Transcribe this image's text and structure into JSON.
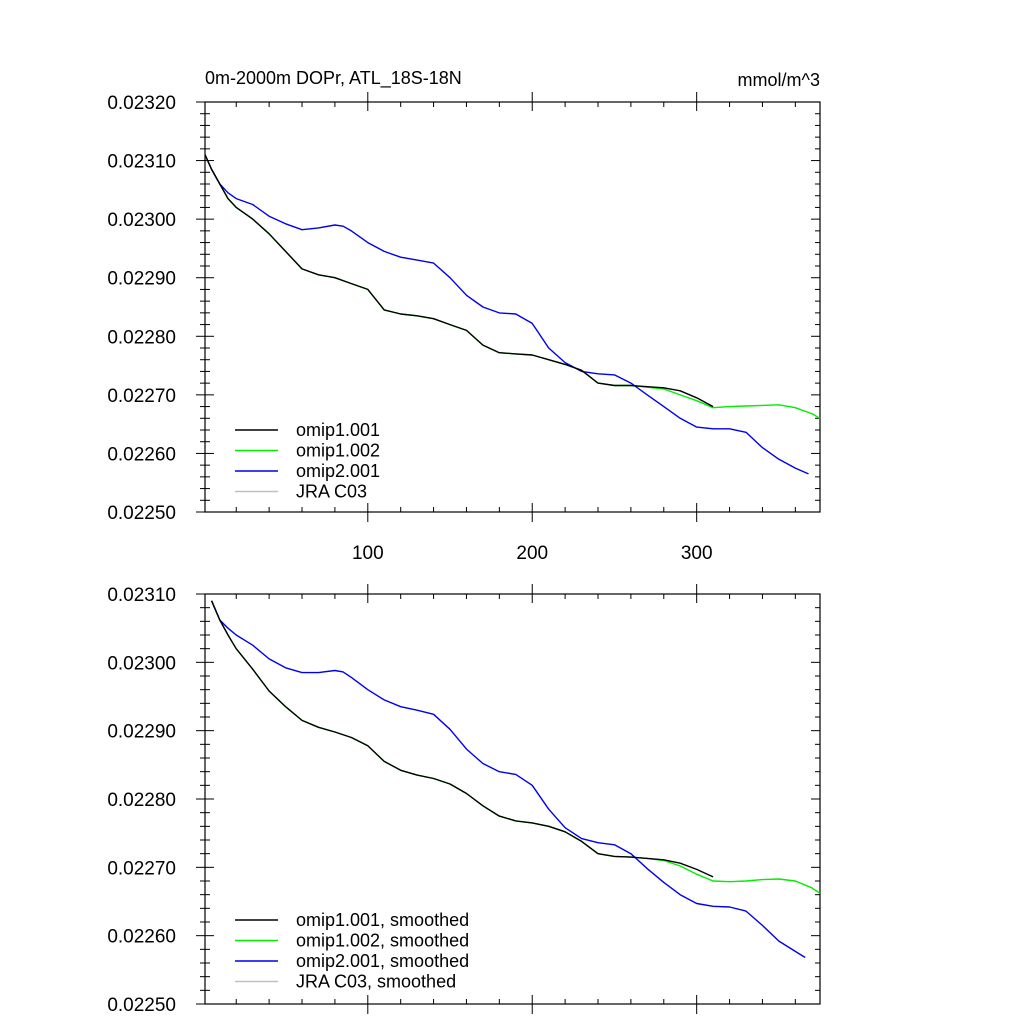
{
  "chart_data": [
    {
      "type": "line",
      "title": "0m-2000m DOPr, ATL_18S-18N",
      "units": "mmol/m^3",
      "xlim": [
        1,
        375
      ],
      "ylim": [
        0.0225,
        0.0232
      ],
      "x_ticks": [
        100,
        200,
        300
      ],
      "y_ticks": [
        "0.02250",
        "0.02260",
        "0.02270",
        "0.02280",
        "0.02290",
        "0.02300",
        "0.02310",
        "0.02320"
      ],
      "grid": false,
      "legend_position": "bottom-left",
      "series": [
        {
          "name": "omip1.001",
          "color": "#000000",
          "x": [
            1,
            5,
            10,
            15,
            20,
            30,
            40,
            50,
            60,
            70,
            80,
            90,
            100,
            110,
            120,
            130,
            140,
            150,
            160,
            170,
            180,
            190,
            200,
            210,
            220,
            230,
            240,
            250,
            260,
            270,
            280,
            290,
            300,
            310
          ],
          "y": [
            0.02311,
            0.023085,
            0.02306,
            0.023035,
            0.02302,
            0.023,
            0.022975,
            0.022945,
            0.022915,
            0.022905,
            0.0229,
            0.02289,
            0.02288,
            0.022845,
            0.022838,
            0.022835,
            0.02283,
            0.02282,
            0.02281,
            0.022785,
            0.022772,
            0.02277,
            0.022768,
            0.02276,
            0.022752,
            0.022742,
            0.02272,
            0.022716,
            0.022716,
            0.022714,
            0.022712,
            0.022707,
            0.022695,
            0.02268
          ]
        },
        {
          "name": "omip1.002",
          "color": "#00ee00",
          "x": [
            1,
            5,
            10,
            15,
            20,
            30,
            40,
            50,
            60,
            70,
            80,
            90,
            100,
            110,
            120,
            130,
            140,
            150,
            160,
            170,
            180,
            190,
            200,
            210,
            220,
            230,
            240,
            250,
            260,
            270,
            280,
            290,
            300,
            310,
            320,
            330,
            340,
            350,
            360,
            370,
            375
          ],
          "y": [
            0.02311,
            0.023085,
            0.02306,
            0.023035,
            0.02302,
            0.023,
            0.022975,
            0.022945,
            0.022915,
            0.022905,
            0.0229,
            0.02289,
            0.02288,
            0.022845,
            0.022838,
            0.022835,
            0.02283,
            0.02282,
            0.02281,
            0.022785,
            0.022772,
            0.02277,
            0.022768,
            0.02276,
            0.022752,
            0.022742,
            0.02272,
            0.022716,
            0.022716,
            0.022713,
            0.02271,
            0.0227,
            0.02269,
            0.022678,
            0.02268,
            0.022681,
            0.022682,
            0.022683,
            0.022678,
            0.022668,
            0.02266
          ]
        },
        {
          "name": "omip2.001",
          "color": "#0000ee",
          "x": [
            1,
            5,
            10,
            15,
            20,
            30,
            40,
            50,
            60,
            70,
            80,
            85,
            90,
            100,
            110,
            120,
            130,
            140,
            150,
            160,
            170,
            180,
            190,
            200,
            210,
            220,
            230,
            240,
            250,
            260,
            270,
            280,
            290,
            300,
            310,
            320,
            330,
            340,
            350,
            360,
            368
          ],
          "y": [
            0.02311,
            0.023085,
            0.02306,
            0.023045,
            0.023035,
            0.023025,
            0.023005,
            0.022992,
            0.022982,
            0.022985,
            0.02299,
            0.022988,
            0.02298,
            0.02296,
            0.022945,
            0.022935,
            0.02293,
            0.022925,
            0.0229,
            0.02287,
            0.02285,
            0.02284,
            0.022838,
            0.022822,
            0.02278,
            0.022755,
            0.02274,
            0.022736,
            0.022734,
            0.02272,
            0.0227,
            0.02268,
            0.02266,
            0.022645,
            0.022642,
            0.022642,
            0.022636,
            0.02261,
            0.02259,
            0.022575,
            0.022565
          ]
        },
        {
          "name": "JRA C03",
          "color": "#c0c0c0",
          "x": [],
          "y": []
        }
      ]
    },
    {
      "type": "line",
      "title": "",
      "units": "",
      "xlim": [
        1,
        375
      ],
      "ylim": [
        0.0225,
        0.0231
      ],
      "x_ticks": [
        100,
        200,
        300
      ],
      "y_ticks": [
        "0.02250",
        "0.02260",
        "0.02270",
        "0.02280",
        "0.02290",
        "0.02300",
        "0.02310"
      ],
      "grid": false,
      "legend_position": "bottom-left",
      "series": [
        {
          "name": "omip1.001, smoothed",
          "color": "#000000",
          "x": [
            5,
            10,
            15,
            20,
            30,
            40,
            50,
            60,
            70,
            80,
            90,
            100,
            110,
            120,
            130,
            140,
            150,
            160,
            170,
            180,
            190,
            200,
            210,
            220,
            230,
            240,
            250,
            260,
            270,
            280,
            290,
            300,
            310
          ],
          "y": [
            0.02309,
            0.023062,
            0.02304,
            0.02302,
            0.02299,
            0.022958,
            0.022935,
            0.022915,
            0.022905,
            0.022898,
            0.02289,
            0.022878,
            0.022855,
            0.022842,
            0.022835,
            0.02283,
            0.022822,
            0.022808,
            0.02279,
            0.022775,
            0.022768,
            0.022765,
            0.02276,
            0.022752,
            0.022738,
            0.02272,
            0.022716,
            0.022715,
            0.022713,
            0.022711,
            0.022706,
            0.022697,
            0.022686
          ]
        },
        {
          "name": "omip1.002, smoothed",
          "color": "#00ee00",
          "x": [
            5,
            10,
            15,
            20,
            30,
            40,
            50,
            60,
            70,
            80,
            90,
            100,
            110,
            120,
            130,
            140,
            150,
            160,
            170,
            180,
            190,
            200,
            210,
            220,
            230,
            240,
            250,
            260,
            270,
            280,
            290,
            300,
            310,
            320,
            330,
            340,
            350,
            360,
            370,
            375
          ],
          "y": [
            0.02309,
            0.023062,
            0.02304,
            0.02302,
            0.02299,
            0.022958,
            0.022935,
            0.022915,
            0.022905,
            0.022898,
            0.02289,
            0.022878,
            0.022855,
            0.022842,
            0.022835,
            0.02283,
            0.022822,
            0.022808,
            0.02279,
            0.022775,
            0.022768,
            0.022765,
            0.02276,
            0.022752,
            0.022738,
            0.02272,
            0.022716,
            0.022715,
            0.022713,
            0.02271,
            0.022702,
            0.02269,
            0.02268,
            0.022679,
            0.02268,
            0.022682,
            0.022683,
            0.02268,
            0.02267,
            0.022662
          ]
        },
        {
          "name": "omip2.001, smoothed",
          "color": "#0000ee",
          "x": [
            5,
            10,
            15,
            20,
            30,
            40,
            50,
            60,
            70,
            80,
            85,
            90,
            100,
            110,
            120,
            130,
            140,
            150,
            160,
            170,
            180,
            190,
            200,
            210,
            220,
            230,
            240,
            250,
            260,
            270,
            280,
            290,
            300,
            310,
            320,
            330,
            340,
            350,
            360,
            366
          ],
          "y": [
            0.02309,
            0.023062,
            0.02305,
            0.02304,
            0.023025,
            0.023005,
            0.022992,
            0.022985,
            0.022985,
            0.022988,
            0.022986,
            0.022978,
            0.02296,
            0.022945,
            0.022935,
            0.02293,
            0.022924,
            0.022902,
            0.022873,
            0.022852,
            0.02284,
            0.022836,
            0.02282,
            0.022785,
            0.022758,
            0.022742,
            0.022736,
            0.022733,
            0.02272,
            0.022698,
            0.022678,
            0.02266,
            0.022647,
            0.022643,
            0.022642,
            0.022636,
            0.022615,
            0.022592,
            0.022577,
            0.022568
          ]
        },
        {
          "name": "JRA C03, smoothed",
          "color": "#c0c0c0",
          "x": [],
          "y": []
        }
      ]
    }
  ]
}
